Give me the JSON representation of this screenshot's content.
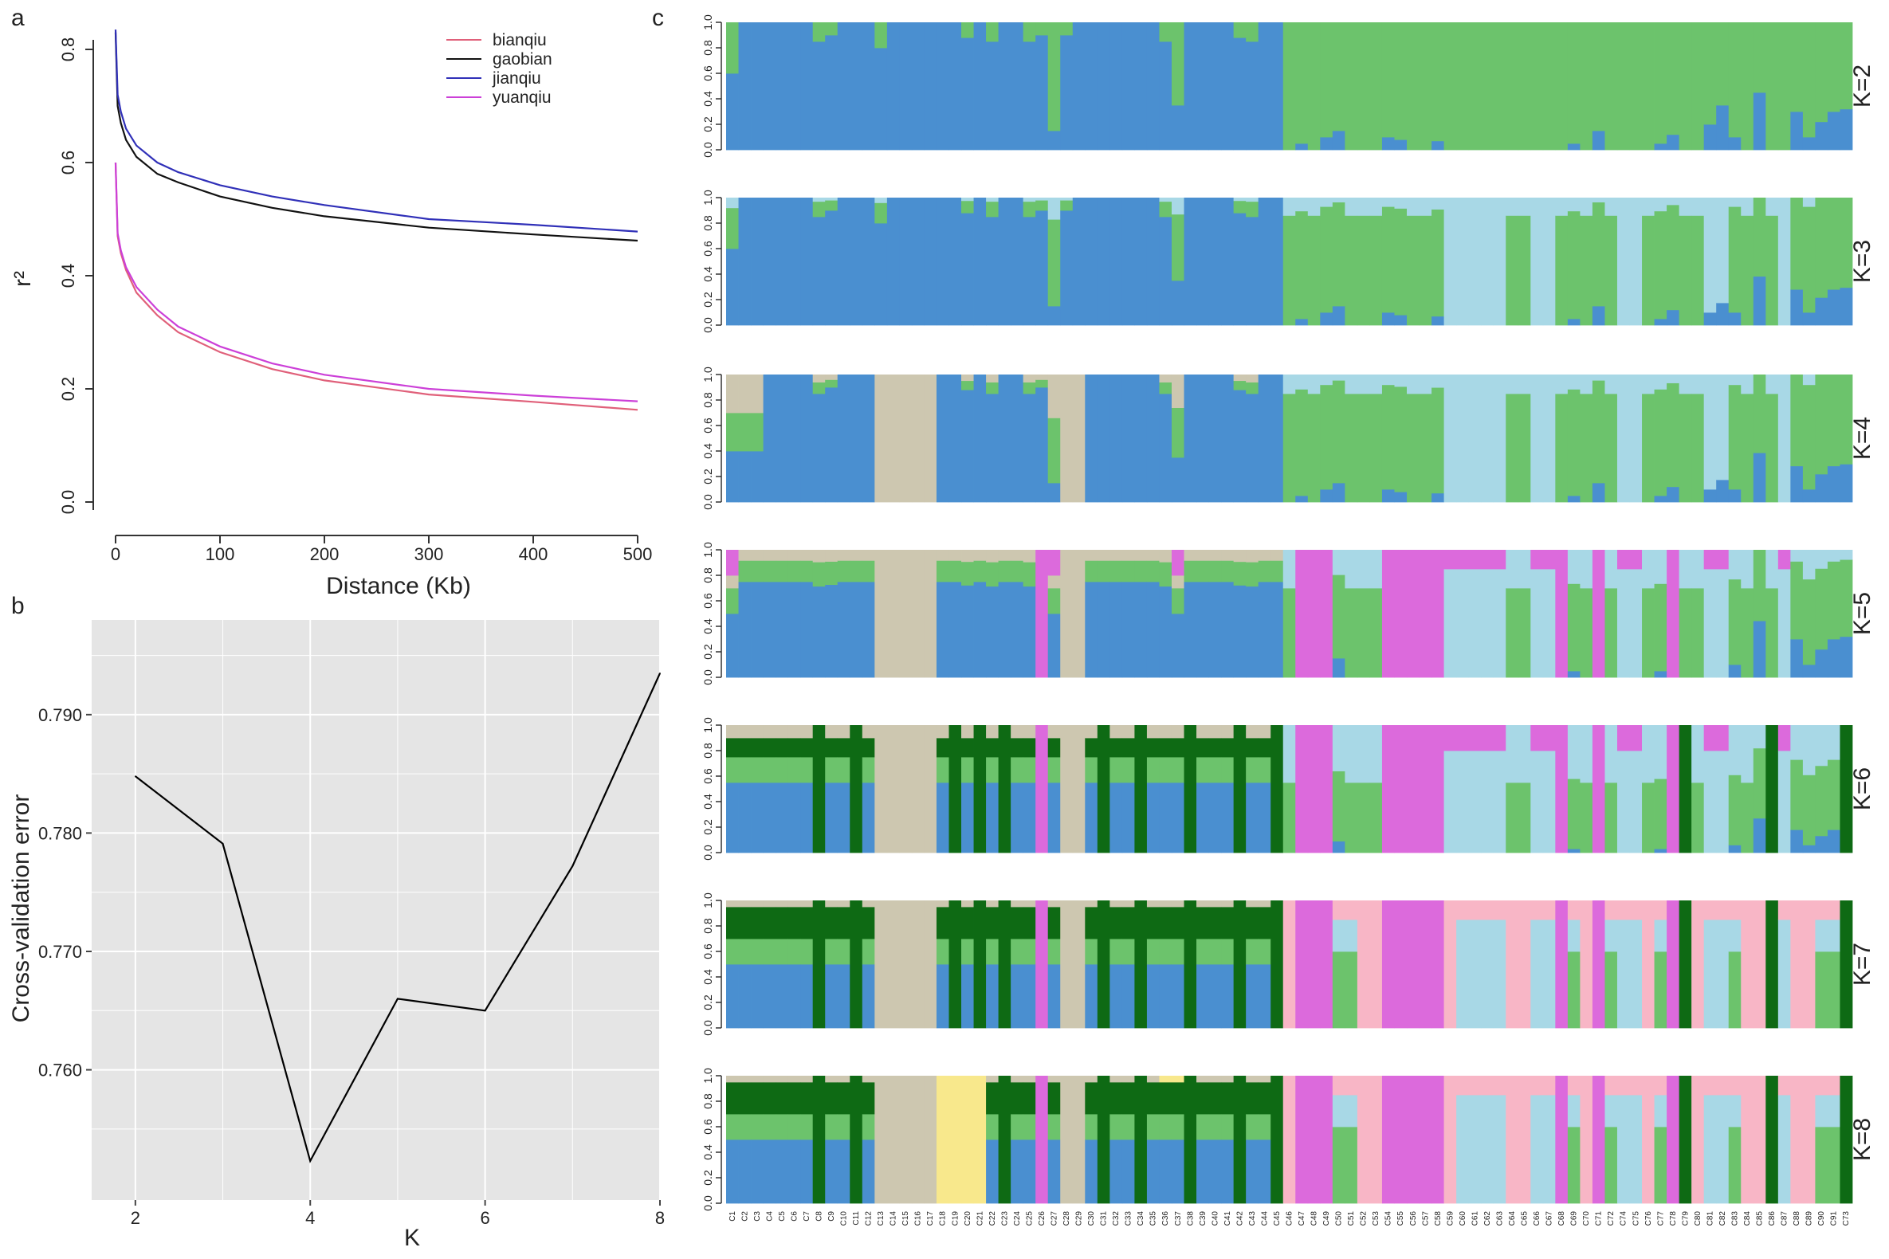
{
  "palette": {
    "blue": "#4a8fd0",
    "green": "#6cc36c",
    "lightblue": "#a8d8e6",
    "tan": "#cdc7b0",
    "magenta": "#dc6adc",
    "darkgreen": "#0e6a14",
    "pink": "#f8b6c6",
    "yellow": "#f8e88c"
  },
  "panel_a": {
    "letter": "a",
    "xlabel": "Distance (Kb)",
    "ylabel": "r²",
    "xticks": [
      "0",
      "100",
      "200",
      "300",
      "400",
      "500"
    ],
    "yticks": [
      "0.0",
      "0.2",
      "0.4",
      "0.6",
      "0.8"
    ],
    "legend": [
      {
        "name": "bianqiu",
        "color": "#e0607a"
      },
      {
        "name": "gaobian",
        "color": "#111111"
      },
      {
        "name": "jianqiu",
        "color": "#3030b8"
      },
      {
        "name": "yuanqiu",
        "color": "#cc40d8"
      }
    ]
  },
  "panel_b": {
    "letter": "b",
    "xlabel": "K",
    "ylabel": "Cross-validation error",
    "xticks": [
      "2",
      "4",
      "6",
      "8"
    ],
    "yticks": [
      "0.760",
      "0.770",
      "0.780",
      "0.790"
    ]
  },
  "panel_c": {
    "letter": "c",
    "yticks": [
      "0.0",
      "0.2",
      "0.4",
      "0.6",
      "0.8",
      "1.0"
    ],
    "k_labels": [
      "K=2",
      "K=3",
      "K=4",
      "K=5",
      "K=6",
      "K=7",
      "K=8"
    ],
    "samples": [
      "C1",
      "C2",
      "C3",
      "C4",
      "C5",
      "C6",
      "C7",
      "C8",
      "C9",
      "C10",
      "C11",
      "C12",
      "C13",
      "C14",
      "C15",
      "C16",
      "C17",
      "C18",
      "C19",
      "C20",
      "C21",
      "C22",
      "C23",
      "C24",
      "C25",
      "C26",
      "C27",
      "C28",
      "C29",
      "C30",
      "C31",
      "C32",
      "C33",
      "C34",
      "C35",
      "C36",
      "C37",
      "C38",
      "C39",
      "C40",
      "C41",
      "C42",
      "C43",
      "C44",
      "C45",
      "C46",
      "C47",
      "C48",
      "C49",
      "C50",
      "C51",
      "C52",
      "C53",
      "C54",
      "C55",
      "C56",
      "C57",
      "C58",
      "C59",
      "C60",
      "C61",
      "C62",
      "C63",
      "C64",
      "C65",
      "C66",
      "C67",
      "C68",
      "C69",
      "C70",
      "C71",
      "C72",
      "C74",
      "C75",
      "C76",
      "C77",
      "C78",
      "C79",
      "C80",
      "C81",
      "C82",
      "C83",
      "C84",
      "C85",
      "C86",
      "C87",
      "C88",
      "C89",
      "C90",
      "C91",
      "C73"
    ]
  },
  "chart_data": [
    {
      "type": "line",
      "title": "",
      "xlabel": "Distance (Kb)",
      "ylabel": "r²",
      "xlim": [
        0,
        500
      ],
      "ylim": [
        0,
        0.8
      ],
      "series": [
        {
          "name": "bianqiu",
          "x": [
            0,
            2,
            5,
            10,
            20,
            40,
            60,
            100,
            150,
            200,
            300,
            400,
            500
          ],
          "values": [
            0.6,
            0.47,
            0.44,
            0.41,
            0.37,
            0.33,
            0.3,
            0.265,
            0.235,
            0.215,
            0.19,
            0.177,
            0.163
          ]
        },
        {
          "name": "gaobian",
          "x": [
            0,
            2,
            5,
            10,
            20,
            40,
            60,
            100,
            150,
            200,
            300,
            400,
            500
          ],
          "values": [
            0.83,
            0.7,
            0.67,
            0.64,
            0.61,
            0.58,
            0.565,
            0.54,
            0.52,
            0.505,
            0.485,
            0.473,
            0.462
          ]
        },
        {
          "name": "jianqiu",
          "x": [
            0,
            2,
            5,
            10,
            20,
            40,
            60,
            100,
            150,
            200,
            300,
            400,
            500
          ],
          "values": [
            0.835,
            0.72,
            0.69,
            0.66,
            0.63,
            0.6,
            0.583,
            0.56,
            0.54,
            0.525,
            0.5,
            0.49,
            0.478
          ]
        },
        {
          "name": "yuanqiu",
          "x": [
            0,
            2,
            5,
            10,
            20,
            40,
            60,
            100,
            150,
            200,
            300,
            400,
            500
          ],
          "values": [
            0.6,
            0.475,
            0.445,
            0.415,
            0.38,
            0.34,
            0.31,
            0.275,
            0.245,
            0.225,
            0.2,
            0.188,
            0.178
          ]
        }
      ]
    },
    {
      "type": "line",
      "title": "",
      "xlabel": "K",
      "ylabel": "Cross-validation error",
      "xlim": [
        1.5,
        8
      ],
      "ylim": [
        0.749,
        0.798
      ],
      "grid": true,
      "x": [
        2,
        3,
        4,
        5,
        6,
        7,
        8
      ],
      "values": [
        0.7848,
        0.7791,
        0.7523,
        0.766,
        0.765,
        0.7772,
        0.7935
      ]
    },
    {
      "type": "bar",
      "subtype": "stacked-admixture",
      "ylim": [
        0,
        1
      ],
      "k_values": [
        2,
        3,
        4,
        5,
        6,
        7,
        8
      ],
      "samples": 91
    }
  ]
}
